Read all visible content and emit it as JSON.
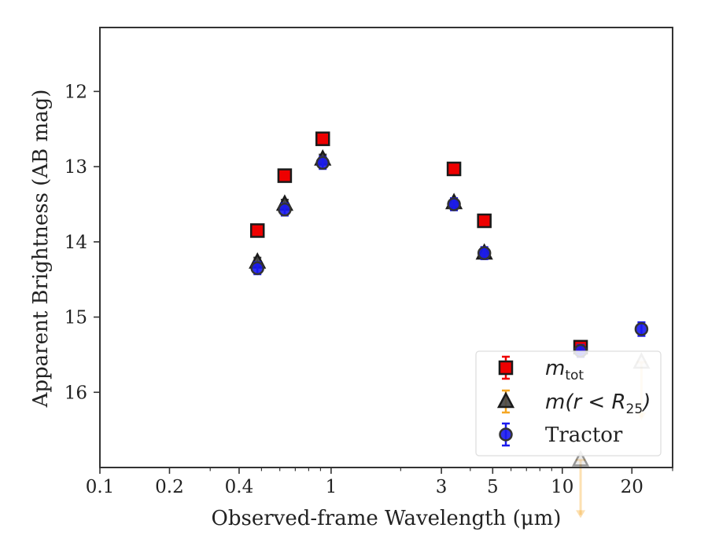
{
  "chart_data": {
    "type": "scatter",
    "xlabel": "Observed-frame Wavelength (μm)",
    "ylabel": "Apparent Brightness (AB mag)",
    "x_scale": "log",
    "xlim": [
      0.1,
      30
    ],
    "ylim": [
      17.0,
      11.15
    ],
    "y_inverted": true,
    "grid": false,
    "legend_position": "bottom-right",
    "x_ticks": [
      {
        "value": 0.1,
        "label": "0.1"
      },
      {
        "value": 0.2,
        "label": "0.2"
      },
      {
        "value": 0.4,
        "label": "0.4"
      },
      {
        "value": 1,
        "label": "1"
      },
      {
        "value": 3,
        "label": "3"
      },
      {
        "value": 5,
        "label": "5"
      },
      {
        "value": 10,
        "label": "10"
      },
      {
        "value": 20,
        "label": "20"
      }
    ],
    "y_ticks": [
      {
        "value": 12,
        "label": "12"
      },
      {
        "value": 13,
        "label": "13"
      },
      {
        "value": 14,
        "label": "14"
      },
      {
        "value": 15,
        "label": "15"
      },
      {
        "value": 16,
        "label": "16"
      }
    ],
    "series": [
      {
        "name": "m_tot",
        "marker": "square",
        "color": "#ee0000",
        "points": [
          {
            "x": 0.48,
            "y": 13.85,
            "err": 0.08
          },
          {
            "x": 0.63,
            "y": 13.12,
            "err": 0.08
          },
          {
            "x": 0.92,
            "y": 12.63,
            "err": 0.08
          },
          {
            "x": 3.4,
            "y": 13.03,
            "err": 0.08
          },
          {
            "x": 4.6,
            "y": 13.72,
            "err": 0.08
          },
          {
            "x": 12.0,
            "y": 15.4,
            "err": 0.06
          }
        ]
      },
      {
        "name": "m(r < R25)",
        "marker": "triangle",
        "color": "#444444",
        "points": [
          {
            "x": 0.48,
            "y": 14.27,
            "err": 0.06
          },
          {
            "x": 0.63,
            "y": 13.5,
            "err": 0.06
          },
          {
            "x": 0.92,
            "y": 12.9,
            "err": 0.06
          },
          {
            "x": 3.4,
            "y": 13.48,
            "err": 0.06
          },
          {
            "x": 4.6,
            "y": 14.15,
            "err": 0.06
          }
        ],
        "upper_limits": [
          {
            "x": 12.0,
            "y": 16.9
          },
          {
            "x": 22.0,
            "y": 15.6
          }
        ]
      },
      {
        "name": "Tractor",
        "marker": "circle",
        "color": "#1a1aee",
        "points": [
          {
            "x": 0.48,
            "y": 14.35,
            "err": 0.08
          },
          {
            "x": 0.63,
            "y": 13.57,
            "err": 0.08
          },
          {
            "x": 0.92,
            "y": 12.95,
            "err": 0.08
          },
          {
            "x": 3.4,
            "y": 13.5,
            "err": 0.08
          },
          {
            "x": 4.6,
            "y": 14.15,
            "err": 0.08
          },
          {
            "x": 12.0,
            "y": 15.45,
            "err": 0.08
          },
          {
            "x": 22.0,
            "y": 15.16,
            "err": 0.09
          }
        ]
      }
    ],
    "legend": {
      "entries": [
        {
          "symbol": "m",
          "sub": "tot",
          "marker": "square",
          "color": "#ee0000",
          "err_color": "#ee0000"
        },
        {
          "symbol": "m(r < R",
          "sub": "25",
          "tail": ")",
          "marker": "triangle",
          "color": "#444444",
          "err_color": "#f5a623"
        },
        {
          "label": "Tractor",
          "marker": "circle",
          "color": "#1a1aee",
          "err_color": "#1a1aee"
        }
      ]
    },
    "colors": {
      "limit_arrow": "#f5a623",
      "axis": "#333333"
    }
  }
}
